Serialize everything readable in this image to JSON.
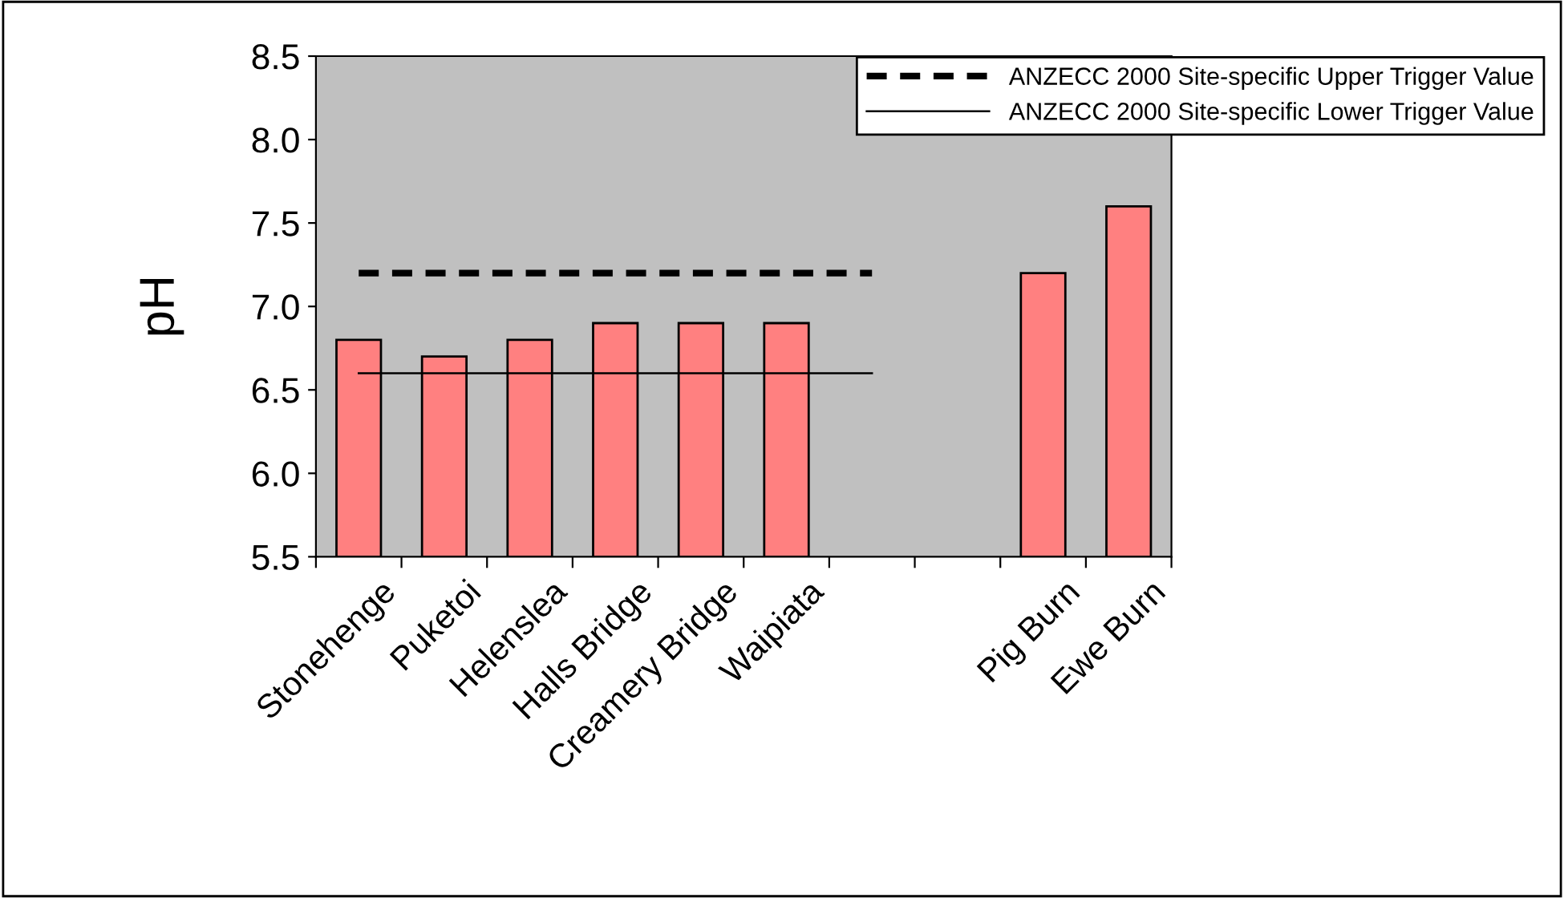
{
  "chart_data": {
    "type": "bar",
    "ylabel": "pH",
    "categories": [
      "Stonehenge",
      "Puketoi",
      "Helenslea",
      "Halls Bridge",
      "Creamery Bridge",
      "Waipiata",
      null,
      null,
      "Pig Burn",
      "Ewe Burn"
    ],
    "series": [
      {
        "color": "#ff8080",
        "values": [
          6.8,
          6.7,
          6.8,
          6.9,
          6.9,
          6.9,
          null,
          null,
          7.2,
          7.6
        ]
      },
      {
        "type": "line",
        "name": "ANZECC 2000 Site-specific Upper Trigger Value",
        "color": "#000000",
        "line_style": "dashed",
        "values": [
          7.2,
          7.2,
          7.2,
          7.2,
          7.2,
          7.2,
          7.2,
          null,
          null,
          null
        ]
      },
      {
        "type": "line",
        "name": "ANZECC 2000 Site-specific Lower Trigger Value",
        "color": "#000000",
        "line_style": "solid",
        "values": [
          6.6,
          6.6,
          6.6,
          6.6,
          6.6,
          6.6,
          6.6,
          null,
          null,
          null
        ]
      }
    ],
    "ylim": [
      5.5,
      8.5
    ],
    "yticks": [
      5.5,
      {
        "value": 6,
        "label": "6.0"
      },
      6.5,
      {
        "value": 7,
        "label": "7.0"
      },
      7.5,
      {
        "value": 8,
        "label": "8.0"
      },
      8.5
    ],
    "grid": false,
    "legend": "top right",
    "marker": "none"
  }
}
